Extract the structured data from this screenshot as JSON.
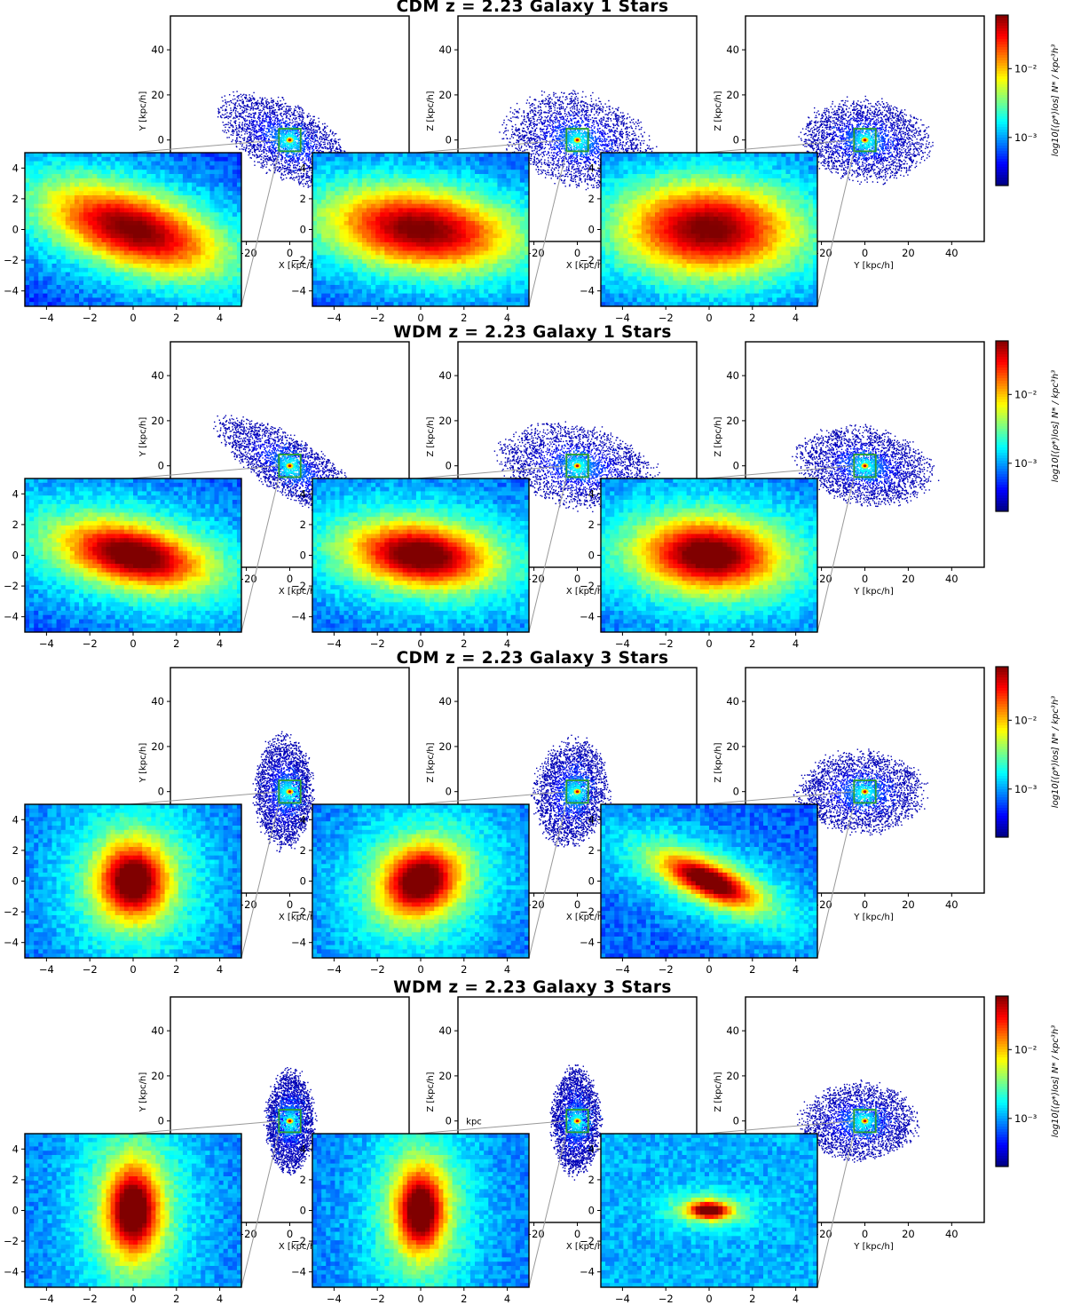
{
  "figure": {
    "panels": [
      {
        "title": "CDM z = 2.23 Galaxy 1 Stars",
        "views": [
          {
            "xlabel": "X [kpc/h]",
            "ylabel": "Y [kpc/h]",
            "extra_label": "",
            "core": {
              "axis_ratio": 1.9,
              "angle_deg": -28,
              "size_kpc": 2.4,
              "floor": 0.12
            },
            "outer": {
              "rx_kpc": 30,
              "ry_kpc": 14,
              "angle_deg": -28,
              "cx_kpc": -2,
              "cy_kpc": 0
            }
          },
          {
            "xlabel": "X [kpc/h]",
            "ylabel": "Z [kpc/h]",
            "extra_label": "",
            "core": {
              "axis_ratio": 1.7,
              "angle_deg": -12,
              "size_kpc": 2.5,
              "floor": 0.12
            },
            "outer": {
              "rx_kpc": 30,
              "ry_kpc": 18,
              "angle_deg": -12,
              "cx_kpc": 0,
              "cy_kpc": 0
            }
          },
          {
            "xlabel": "Y [kpc/h]",
            "ylabel": "Z [kpc/h]",
            "extra_label": "",
            "core": {
              "axis_ratio": 1.35,
              "angle_deg": -5,
              "size_kpc": 2.6,
              "floor": 0.12
            },
            "outer": {
              "rx_kpc": 26,
              "ry_kpc": 16,
              "angle_deg": -5,
              "cx_kpc": 0,
              "cy_kpc": 0
            }
          }
        ]
      },
      {
        "title": "WDM z = 2.23 Galaxy 1 Stars",
        "views": [
          {
            "xlabel": "X [kpc/h]",
            "ylabel": "Y [kpc/h]",
            "extra_label": "",
            "core": {
              "axis_ratio": 1.8,
              "angle_deg": -20,
              "size_kpc": 1.9,
              "floor": 0.18
            },
            "outer": {
              "rx_kpc": 34,
              "ry_kpc": 11,
              "angle_deg": -30,
              "cx_kpc": 0,
              "cy_kpc": 0
            }
          },
          {
            "xlabel": "X [kpc/h]",
            "ylabel": "Z [kpc/h]",
            "extra_label": "",
            "core": {
              "axis_ratio": 1.6,
              "angle_deg": -12,
              "size_kpc": 1.9,
              "floor": 0.18
            },
            "outer": {
              "rx_kpc": 32,
              "ry_kpc": 16,
              "angle_deg": -10,
              "cx_kpc": 0,
              "cy_kpc": 0
            }
          },
          {
            "xlabel": "Y [kpc/h]",
            "ylabel": "Z [kpc/h]",
            "extra_label": "",
            "core": {
              "axis_ratio": 1.4,
              "angle_deg": -8,
              "size_kpc": 2.0,
              "floor": 0.18
            },
            "outer": {
              "rx_kpc": 28,
              "ry_kpc": 15,
              "angle_deg": -10,
              "cx_kpc": 0,
              "cy_kpc": 0
            }
          }
        ]
      },
      {
        "title": "CDM z = 2.23 Galaxy 3 Stars",
        "views": [
          {
            "xlabel": "X [kpc/h]",
            "ylabel": "Y [kpc/h]",
            "extra_label": "",
            "core": {
              "axis_ratio": 0.65,
              "angle_deg": 0,
              "size_kpc": 1.5,
              "floor": 0.22
            },
            "outer": {
              "rx_kpc": 12,
              "ry_kpc": 22,
              "angle_deg": 0,
              "cx_kpc": -3,
              "cy_kpc": 0
            }
          },
          {
            "xlabel": "X [kpc/h]",
            "ylabel": "Z [kpc/h]",
            "extra_label": "",
            "core": {
              "axis_ratio": 0.75,
              "angle_deg": -15,
              "size_kpc": 1.5,
              "floor": 0.22
            },
            "outer": {
              "rx_kpc": 15,
              "ry_kpc": 21,
              "angle_deg": -10,
              "cx_kpc": -3,
              "cy_kpc": 0
            }
          },
          {
            "xlabel": "Y [kpc/h]",
            "ylabel": "Z [kpc/h]",
            "extra_label": "",
            "core": {
              "axis_ratio": 2.4,
              "angle_deg": -35,
              "size_kpc": 1.2,
              "floor": 0.22
            },
            "outer": {
              "rx_kpc": 26,
              "ry_kpc": 16,
              "angle_deg": 0,
              "cx_kpc": -2,
              "cy_kpc": 0
            }
          }
        ]
      },
      {
        "title": "WDM z = 2.23 Galaxy 3 Stars",
        "views": [
          {
            "xlabel": "X [kpc/h]",
            "ylabel": "Y [kpc/h]",
            "extra_label": "",
            "core": {
              "axis_ratio": 0.42,
              "angle_deg": 0,
              "size_kpc": 1.4,
              "floor": 0.25
            },
            "outer": {
              "rx_kpc": 10,
              "ry_kpc": 20,
              "angle_deg": 0,
              "cx_kpc": 0,
              "cy_kpc": 0
            }
          },
          {
            "xlabel": "X [kpc/h]",
            "ylabel": "Z [kpc/h]",
            "extra_label": "kpc",
            "core": {
              "axis_ratio": 0.42,
              "angle_deg": 0,
              "size_kpc": 1.3,
              "floor": 0.25
            },
            "outer": {
              "rx_kpc": 10,
              "ry_kpc": 21,
              "angle_deg": 0,
              "cx_kpc": -1,
              "cy_kpc": 0
            }
          },
          {
            "xlabel": "Y [kpc/h]",
            "ylabel": "Z [kpc/h]",
            "extra_label": "",
            "core": {
              "axis_ratio": 1.7,
              "angle_deg": -5,
              "size_kpc": 0.5,
              "floor": 0.3
            },
            "outer": {
              "rx_kpc": 24,
              "ry_kpc": 15,
              "angle_deg": 0,
              "cx_kpc": -3,
              "cy_kpc": 0
            }
          }
        ]
      }
    ],
    "colorbar_label": "log10[⟨ρ*⟩los] N* / kpc³h³",
    "colorbar_ticks": [
      "10⁻²",
      "10⁻³"
    ],
    "colors": {
      "frame": "#000000",
      "connector": "#999999",
      "zoom_box": "#2ca02c",
      "colormap": "jet"
    }
  },
  "chart_data": {
    "type": "heatmap",
    "colormap": "jet",
    "colorbar": {
      "label": "log10[⟨ρ*⟩los] N* / kpc³h³",
      "scale": "log",
      "range": [
        0.0002,
        0.06
      ],
      "ticks": [
        0.01,
        0.001
      ]
    },
    "main_axes": {
      "xlim": [
        -55,
        55
      ],
      "ylim": [
        -45,
        55
      ],
      "xticks": [
        -20,
        0,
        20,
        40
      ],
      "yticks": [
        -20,
        0,
        20,
        40
      ],
      "zoom_box_kpc": [
        -5,
        5
      ]
    },
    "inset_axes": {
      "xlim": [
        -5,
        5
      ],
      "ylim": [
        -5,
        5
      ],
      "xticks": [
        -4,
        -2,
        0,
        2,
        4
      ],
      "yticks": [
        -4,
        -2,
        0,
        2,
        4
      ]
    },
    "panels": [
      {
        "title": "CDM z = 2.23 Galaxy 1 Stars",
        "projections": [
          "X-Y",
          "X-Z",
          "Y-Z"
        ]
      },
      {
        "title": "WDM z = 2.23 Galaxy 1 Stars",
        "projections": [
          "X-Y",
          "X-Z",
          "Y-Z"
        ]
      },
      {
        "title": "CDM z = 2.23 Galaxy 3 Stars",
        "projections": [
          "X-Y",
          "X-Z",
          "Y-Z"
        ]
      },
      {
        "title": "WDM z = 2.23 Galaxy 3 Stars",
        "projections": [
          "X-Y",
          "X-Z",
          "Y-Z"
        ]
      }
    ]
  }
}
